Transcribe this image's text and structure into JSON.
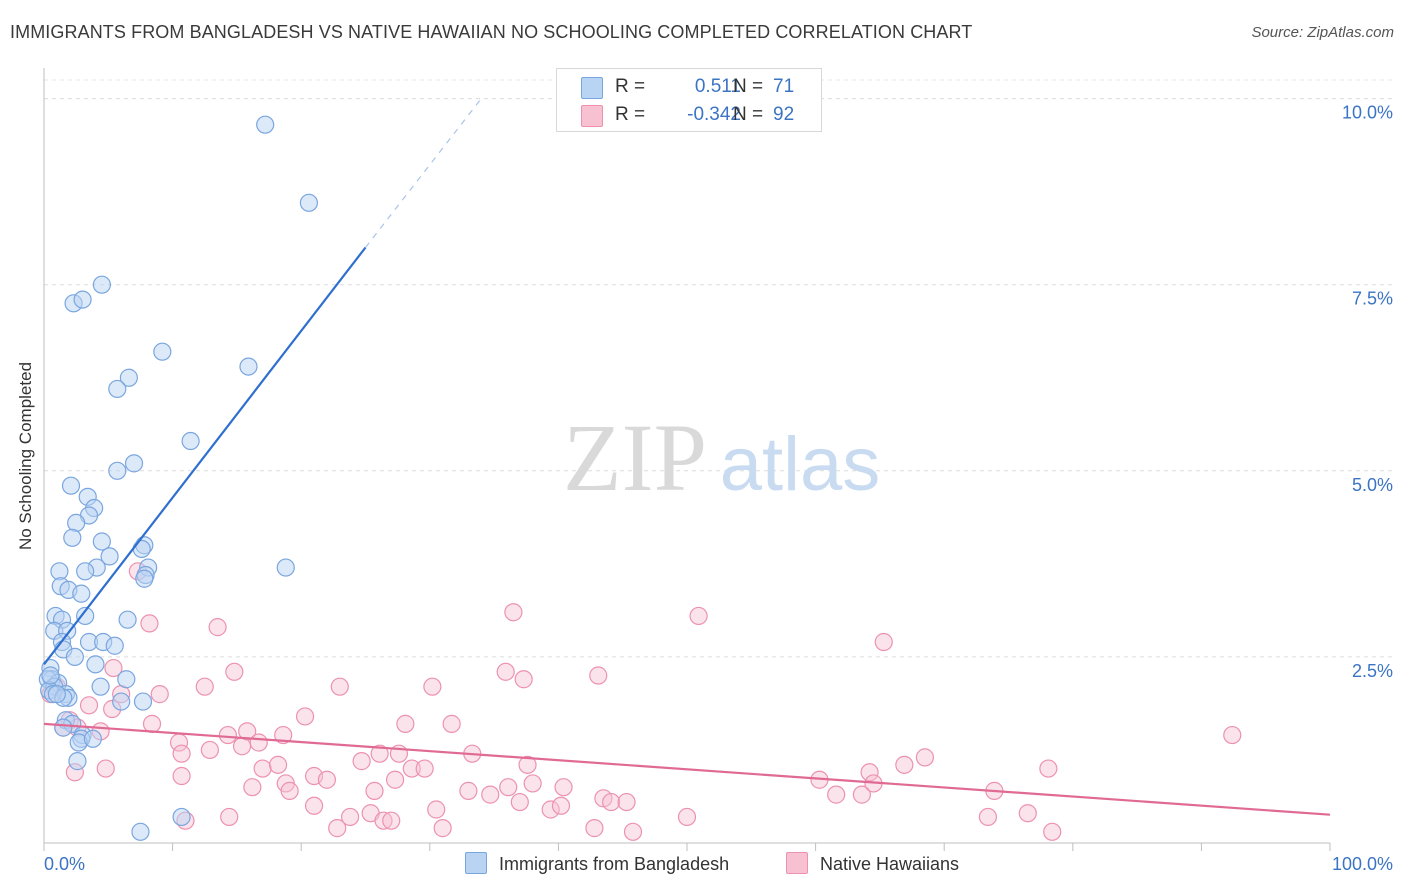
{
  "title": "IMMIGRANTS FROM BANGLADESH VS NATIVE HAWAIIAN NO SCHOOLING COMPLETED CORRELATION CHART",
  "source": "Source: ZipAtlas.com",
  "watermark": {
    "zip": "ZIP",
    "atlas": "atlas"
  },
  "colors": {
    "blue_fill": "#b9d3f3",
    "blue_stroke": "#7aa6df",
    "blue_line": "#2f6fcf",
    "pink_fill": "#f7c1d2",
    "pink_stroke": "#ec92b0",
    "pink_line": "#e06a94",
    "axis_label": "#3b74c4"
  },
  "legend": {
    "rows": [
      {
        "r_label": "R =",
        "r_value": "0.511",
        "n_label": "N =",
        "n_value": "71"
      },
      {
        "r_label": "R =",
        "r_value": "-0.342",
        "n_label": "N =",
        "n_value": "92"
      }
    ]
  },
  "bottom_legend": {
    "series1": "Immigrants from Bangladesh",
    "series2": "Native Hawaiians"
  },
  "chart_data": {
    "type": "scatter",
    "title": "IMMIGRANTS FROM BANGLADESH VS NATIVE HAWAIIAN NO SCHOOLING COMPLETED CORRELATION CHART",
    "xlabel": "",
    "ylabel": "No Schooling Completed",
    "xlim": [
      0,
      100
    ],
    "ylim": [
      0,
      10.25
    ],
    "x_tick_labels": [
      "0.0%",
      "100.0%"
    ],
    "y_ticks": [
      2.5,
      5.0,
      7.5,
      10.0
    ],
    "y_tick_labels": [
      "2.5%",
      "5.0%",
      "7.5%",
      "10.0%"
    ],
    "grid": true,
    "series": [
      {
        "name": "Immigrants from Bangladesh",
        "color": "#7aa6df",
        "r": 0.511,
        "n": 71,
        "trend": {
          "x0": 0,
          "y0": 2.4,
          "x1": 25,
          "y1": 8.0,
          "dash_to_x": 34,
          "dash_to_y": 10.0
        },
        "points": [
          [
            17.2,
            9.65
          ],
          [
            20.6,
            8.6
          ],
          [
            4.5,
            7.5
          ],
          [
            2.3,
            7.25
          ],
          [
            3.0,
            7.3
          ],
          [
            9.2,
            6.6
          ],
          [
            15.9,
            6.4
          ],
          [
            6.6,
            6.25
          ],
          [
            5.7,
            6.1
          ],
          [
            11.4,
            5.4
          ],
          [
            7.0,
            5.1
          ],
          [
            5.7,
            5.0
          ],
          [
            2.1,
            4.8
          ],
          [
            3.4,
            4.65
          ],
          [
            3.9,
            4.5
          ],
          [
            3.5,
            4.4
          ],
          [
            2.5,
            4.3
          ],
          [
            2.2,
            4.1
          ],
          [
            4.5,
            4.05
          ],
          [
            7.8,
            4.0
          ],
          [
            7.6,
            3.95
          ],
          [
            5.1,
            3.85
          ],
          [
            1.2,
            3.65
          ],
          [
            4.1,
            3.7
          ],
          [
            8.1,
            3.7
          ],
          [
            7.9,
            3.6
          ],
          [
            7.8,
            3.55
          ],
          [
            18.8,
            3.7
          ],
          [
            3.2,
            3.65
          ],
          [
            1.3,
            3.45
          ],
          [
            1.9,
            3.4
          ],
          [
            2.9,
            3.35
          ],
          [
            0.9,
            3.05
          ],
          [
            1.4,
            3.0
          ],
          [
            3.2,
            3.05
          ],
          [
            6.5,
            3.0
          ],
          [
            0.8,
            2.85
          ],
          [
            1.8,
            2.85
          ],
          [
            1.4,
            2.7
          ],
          [
            3.5,
            2.7
          ],
          [
            4.6,
            2.7
          ],
          [
            5.5,
            2.65
          ],
          [
            1.5,
            2.6
          ],
          [
            2.4,
            2.5
          ],
          [
            4.0,
            2.4
          ],
          [
            0.5,
            2.35
          ],
          [
            0.6,
            2.2
          ],
          [
            0.3,
            2.2
          ],
          [
            1.1,
            2.15
          ],
          [
            0.8,
            2.1
          ],
          [
            6.4,
            2.2
          ],
          [
            0.4,
            2.05
          ],
          [
            0.7,
            2.0
          ],
          [
            1.7,
            2.0
          ],
          [
            1.9,
            1.95
          ],
          [
            1.5,
            1.95
          ],
          [
            4.4,
            2.1
          ],
          [
            7.7,
            1.9
          ],
          [
            6.0,
            1.9
          ],
          [
            1.7,
            1.65
          ],
          [
            2.2,
            1.6
          ],
          [
            1.5,
            1.55
          ],
          [
            3.0,
            1.45
          ],
          [
            2.9,
            1.4
          ],
          [
            2.7,
            1.35
          ],
          [
            3.8,
            1.4
          ],
          [
            2.6,
            1.1
          ],
          [
            7.5,
            0.15
          ],
          [
            10.7,
            0.35
          ],
          [
            0.5,
            2.25
          ],
          [
            1.0,
            2.0
          ]
        ]
      },
      {
        "name": "Native Hawaiians",
        "color": "#ec92b0",
        "r": -0.342,
        "n": 92,
        "trend": {
          "x0": 0,
          "y0": 1.6,
          "x1": 100,
          "y1": 0.38
        },
        "points": [
          [
            7.3,
            3.65
          ],
          [
            8.2,
            2.95
          ],
          [
            13.5,
            2.9
          ],
          [
            36.5,
            3.1
          ],
          [
            50.9,
            3.05
          ],
          [
            65.3,
            2.7
          ],
          [
            5.4,
            2.35
          ],
          [
            14.8,
            2.3
          ],
          [
            35.9,
            2.3
          ],
          [
            2.0,
            1.65
          ],
          [
            1.5,
            1.55
          ],
          [
            0.5,
            2.0
          ],
          [
            1.0,
            2.1
          ],
          [
            2.6,
            1.55
          ],
          [
            3.5,
            1.85
          ],
          [
            5.3,
            1.8
          ],
          [
            6.0,
            2.0
          ],
          [
            9.0,
            2.0
          ],
          [
            12.5,
            2.1
          ],
          [
            23.0,
            2.1
          ],
          [
            30.2,
            2.1
          ],
          [
            37.3,
            2.2
          ],
          [
            43.1,
            2.25
          ],
          [
            4.4,
            1.5
          ],
          [
            8.4,
            1.6
          ],
          [
            10.5,
            1.35
          ],
          [
            10.7,
            1.2
          ],
          [
            12.9,
            1.25
          ],
          [
            14.3,
            1.45
          ],
          [
            15.4,
            1.3
          ],
          [
            15.8,
            1.5
          ],
          [
            16.7,
            1.35
          ],
          [
            18.6,
            1.45
          ],
          [
            20.3,
            1.7
          ],
          [
            28.1,
            1.6
          ],
          [
            31.7,
            1.6
          ],
          [
            24.7,
            1.1
          ],
          [
            26.1,
            1.2
          ],
          [
            27.6,
            1.2
          ],
          [
            28.6,
            1.0
          ],
          [
            29.6,
            1.0
          ],
          [
            2.4,
            0.95
          ],
          [
            4.8,
            1.0
          ],
          [
            10.7,
            0.9
          ],
          [
            17.0,
            1.0
          ],
          [
            18.2,
            1.05
          ],
          [
            21.0,
            0.9
          ],
          [
            22.0,
            0.85
          ],
          [
            18.8,
            0.8
          ],
          [
            16.2,
            0.75
          ],
          [
            19.1,
            0.7
          ],
          [
            25.7,
            0.7
          ],
          [
            27.3,
            0.85
          ],
          [
            33.3,
            1.2
          ],
          [
            37.6,
            1.05
          ],
          [
            38.0,
            0.8
          ],
          [
            37.0,
            0.55
          ],
          [
            40.4,
            0.75
          ],
          [
            34.7,
            0.65
          ],
          [
            39.4,
            0.45
          ],
          [
            40.2,
            0.5
          ],
          [
            43.5,
            0.6
          ],
          [
            44.1,
            0.55
          ],
          [
            45.3,
            0.55
          ],
          [
            21.0,
            0.5
          ],
          [
            23.8,
            0.35
          ],
          [
            25.4,
            0.4
          ],
          [
            26.4,
            0.3
          ],
          [
            22.8,
            0.2
          ],
          [
            30.5,
            0.45
          ],
          [
            31.0,
            0.2
          ],
          [
            14.4,
            0.35
          ],
          [
            42.8,
            0.2
          ],
          [
            45.8,
            0.15
          ],
          [
            50.0,
            0.35
          ],
          [
            60.3,
            0.85
          ],
          [
            61.6,
            0.65
          ],
          [
            63.6,
            0.65
          ],
          [
            64.2,
            0.95
          ],
          [
            66.9,
            1.05
          ],
          [
            68.5,
            1.15
          ],
          [
            64.5,
            0.8
          ],
          [
            78.1,
            1.0
          ],
          [
            73.4,
            0.35
          ],
          [
            73.9,
            0.7
          ],
          [
            76.5,
            0.4
          ],
          [
            78.4,
            0.15
          ],
          [
            92.4,
            1.45
          ],
          [
            36.1,
            0.75
          ],
          [
            27.0,
            0.3
          ],
          [
            33.0,
            0.7
          ],
          [
            11.0,
            0.3
          ]
        ]
      }
    ]
  }
}
